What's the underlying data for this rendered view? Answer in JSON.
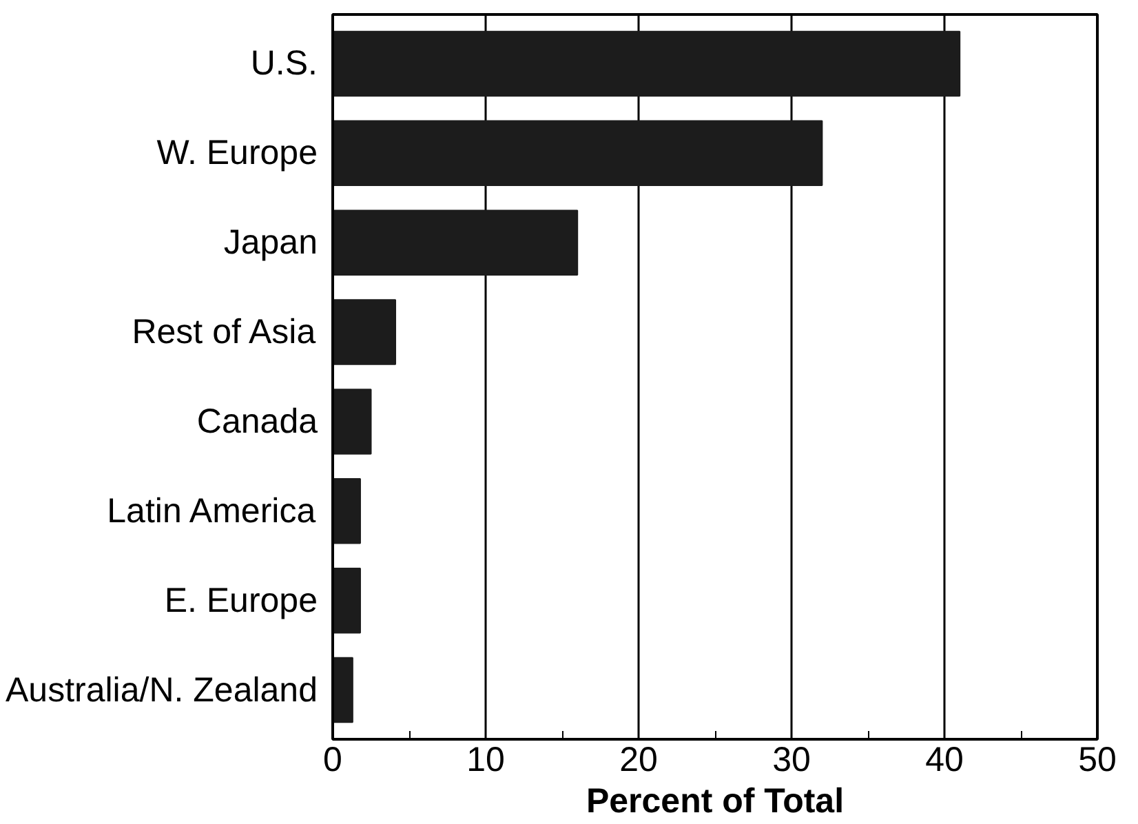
{
  "chart_data": {
    "type": "bar",
    "orientation": "horizontal",
    "categories": [
      "U.S.",
      "W. Europe",
      "Japan",
      "Rest of Asia",
      "Canada",
      "Latin America",
      "E. Europe",
      "Australia/N. Zealand"
    ],
    "values": [
      41,
      32,
      16,
      4.1,
      2.5,
      1.8,
      1.8,
      1.3
    ],
    "color": "#1c1c1c",
    "xlabel": "Percent of Total",
    "xlim": [
      0,
      50
    ],
    "xticks": [
      0,
      10,
      20,
      30,
      40,
      50
    ],
    "grid": "x"
  }
}
